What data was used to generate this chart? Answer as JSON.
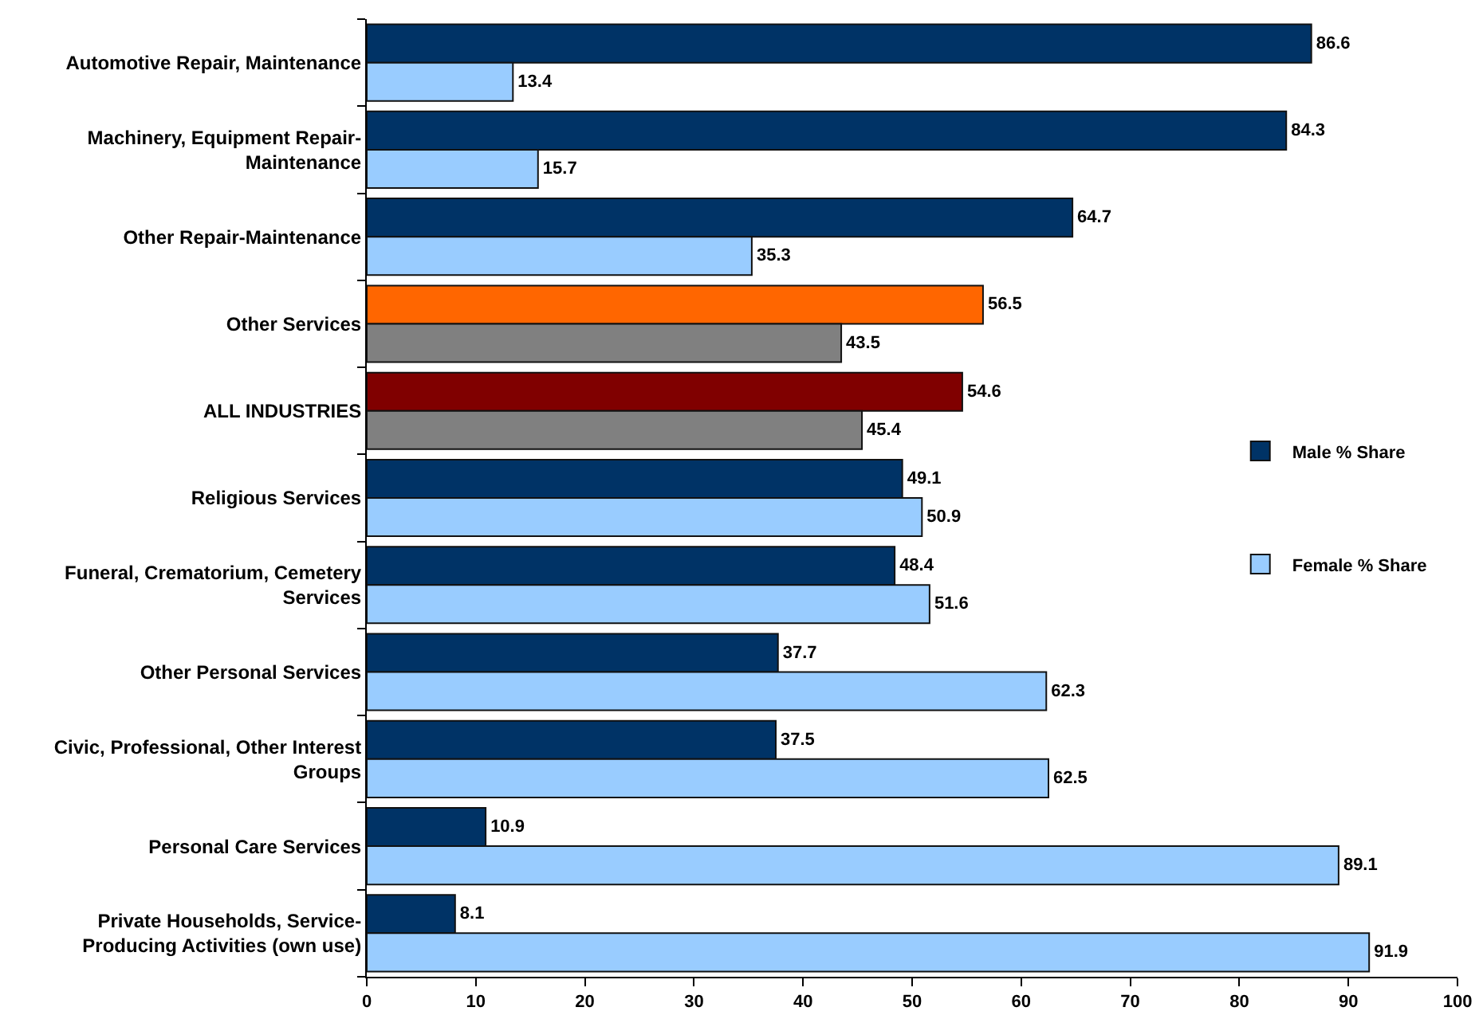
{
  "chart_data": {
    "type": "bar",
    "orientation": "horizontal",
    "categories": [
      "Automotive Repair, Maintenance",
      "Machinery, Equipment Repair-Maintenance",
      "Other Repair-Maintenance",
      "Other Services",
      "ALL INDUSTRIES",
      "Religious Services",
      "Funeral, Crematorium, Cemetery Services",
      "Other Personal Services",
      "Civic, Professional, Other Interest Groups",
      "Personal Care Services",
      "Private Households, Service-Producing Activities (own use)"
    ],
    "series": [
      {
        "name": "Male % Share",
        "colors": [
          "#003366",
          "#003366",
          "#003366",
          "#ff6600",
          "#800000",
          "#003366",
          "#003366",
          "#003366",
          "#003366",
          "#003366",
          "#003366"
        ],
        "values": [
          86.6,
          84.3,
          64.7,
          56.5,
          54.6,
          49.1,
          48.4,
          37.7,
          37.5,
          10.9,
          8.1
        ]
      },
      {
        "name": "Female % Share",
        "colors": [
          "#99ccff",
          "#99ccff",
          "#99ccff",
          "#808080",
          "#808080",
          "#99ccff",
          "#99ccff",
          "#99ccff",
          "#99ccff",
          "#99ccff",
          "#99ccff"
        ],
        "values": [
          13.4,
          15.7,
          35.3,
          43.5,
          45.4,
          50.9,
          51.6,
          62.3,
          62.5,
          89.1,
          91.9
        ]
      }
    ],
    "xlim": [
      0,
      100
    ],
    "xticks": [
      0,
      10,
      20,
      30,
      40,
      50,
      60,
      70,
      80,
      90,
      100
    ],
    "data_labels": true,
    "legend": "right",
    "grid": false
  }
}
